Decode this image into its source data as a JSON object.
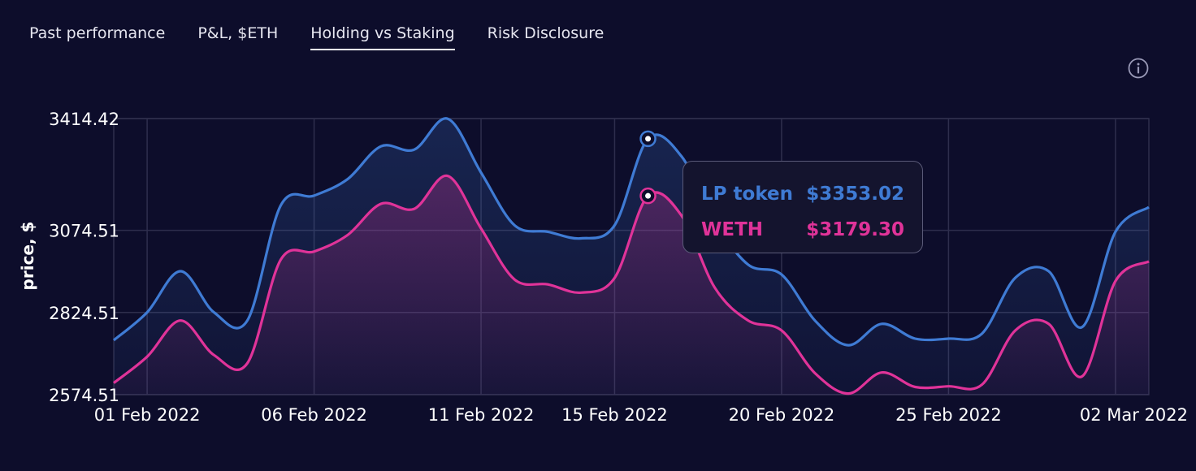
{
  "tabs": [
    {
      "label": "Past performance",
      "active": false
    },
    {
      "label": "P&L, $ETH",
      "active": false
    },
    {
      "label": "Holding vs Staking",
      "active": true
    },
    {
      "label": "Risk Disclosure",
      "active": false
    }
  ],
  "info_icon": "info-icon",
  "colors": {
    "background": "#0d0d2b",
    "lp": "#3f7bd4",
    "weth": "#e03399",
    "grid": "#2e2e4d"
  },
  "tooltip": {
    "rows": [
      {
        "name": "LP token",
        "value": "$3353.02"
      },
      {
        "name": "WETH",
        "value": "$3179.30"
      }
    ]
  },
  "chart_data": {
    "type": "area",
    "ylabel": "price, $",
    "xlabel": "",
    "ylim": [
      2574.51,
      3414.42
    ],
    "yticks": [
      "3414.42",
      "3074.51",
      "2824.51",
      "2574.51"
    ],
    "xticks": [
      "01 Feb 2022",
      "06 Feb 2022",
      "11 Feb 2022",
      "15 Feb 2022",
      "20 Feb 2022",
      "25 Feb 2022",
      "02 Mar 2022"
    ],
    "xstart": "2022-01-31",
    "xend": "2022-03-03",
    "grid": true,
    "series": [
      {
        "name": "LP token",
        "color": "#3f7bd4",
        "points": [
          [
            "2022-01-31",
            2740
          ],
          [
            "2022-02-01",
            2825
          ],
          [
            "2022-02-02",
            2950
          ],
          [
            "2022-02-03",
            2825
          ],
          [
            "2022-02-04",
            2800
          ],
          [
            "2022-02-05",
            3150
          ],
          [
            "2022-02-06",
            3180
          ],
          [
            "2022-02-07",
            3230
          ],
          [
            "2022-02-08",
            3330
          ],
          [
            "2022-02-09",
            3320
          ],
          [
            "2022-02-10",
            3414
          ],
          [
            "2022-02-11",
            3250
          ],
          [
            "2022-02-12",
            3090
          ],
          [
            "2022-02-13",
            3070
          ],
          [
            "2022-02-14",
            3050
          ],
          [
            "2022-02-15",
            3090
          ],
          [
            "2022-02-16",
            3353
          ],
          [
            "2022-02-17",
            3300
          ],
          [
            "2022-02-18",
            3100
          ],
          [
            "2022-02-19",
            2970
          ],
          [
            "2022-02-20",
            2940
          ],
          [
            "2022-02-21",
            2800
          ],
          [
            "2022-02-22",
            2725
          ],
          [
            "2022-02-23",
            2790
          ],
          [
            "2022-02-24",
            2745
          ],
          [
            "2022-02-25",
            2745
          ],
          [
            "2022-02-26",
            2760
          ],
          [
            "2022-02-27",
            2930
          ],
          [
            "2022-02-28",
            2950
          ],
          [
            "2022-03-01",
            2780
          ],
          [
            "2022-03-02",
            3070
          ],
          [
            "2022-03-03",
            3145
          ]
        ]
      },
      {
        "name": "WETH",
        "color": "#e03399",
        "points": [
          [
            "2022-01-31",
            2610
          ],
          [
            "2022-02-01",
            2690
          ],
          [
            "2022-02-02",
            2800
          ],
          [
            "2022-02-03",
            2695
          ],
          [
            "2022-02-04",
            2670
          ],
          [
            "2022-02-05",
            2985
          ],
          [
            "2022-02-06",
            3010
          ],
          [
            "2022-02-07",
            3060
          ],
          [
            "2022-02-08",
            3155
          ],
          [
            "2022-02-09",
            3140
          ],
          [
            "2022-02-10",
            3240
          ],
          [
            "2022-02-11",
            3080
          ],
          [
            "2022-02-12",
            2925
          ],
          [
            "2022-02-13",
            2910
          ],
          [
            "2022-02-14",
            2885
          ],
          [
            "2022-02-15",
            2930
          ],
          [
            "2022-02-16",
            3179.3
          ],
          [
            "2022-02-17",
            3120
          ],
          [
            "2022-02-18",
            2900
          ],
          [
            "2022-02-19",
            2800
          ],
          [
            "2022-02-20",
            2770
          ],
          [
            "2022-02-21",
            2640
          ],
          [
            "2022-02-22",
            2578
          ],
          [
            "2022-02-23",
            2642
          ],
          [
            "2022-02-24",
            2598
          ],
          [
            "2022-02-25",
            2600
          ],
          [
            "2022-02-26",
            2605
          ],
          [
            "2022-02-27",
            2770
          ],
          [
            "2022-02-28",
            2790
          ],
          [
            "2022-03-01",
            2630
          ],
          [
            "2022-03-02",
            2920
          ],
          [
            "2022-03-03",
            2980
          ]
        ]
      }
    ],
    "highlight": "2022-02-16"
  }
}
